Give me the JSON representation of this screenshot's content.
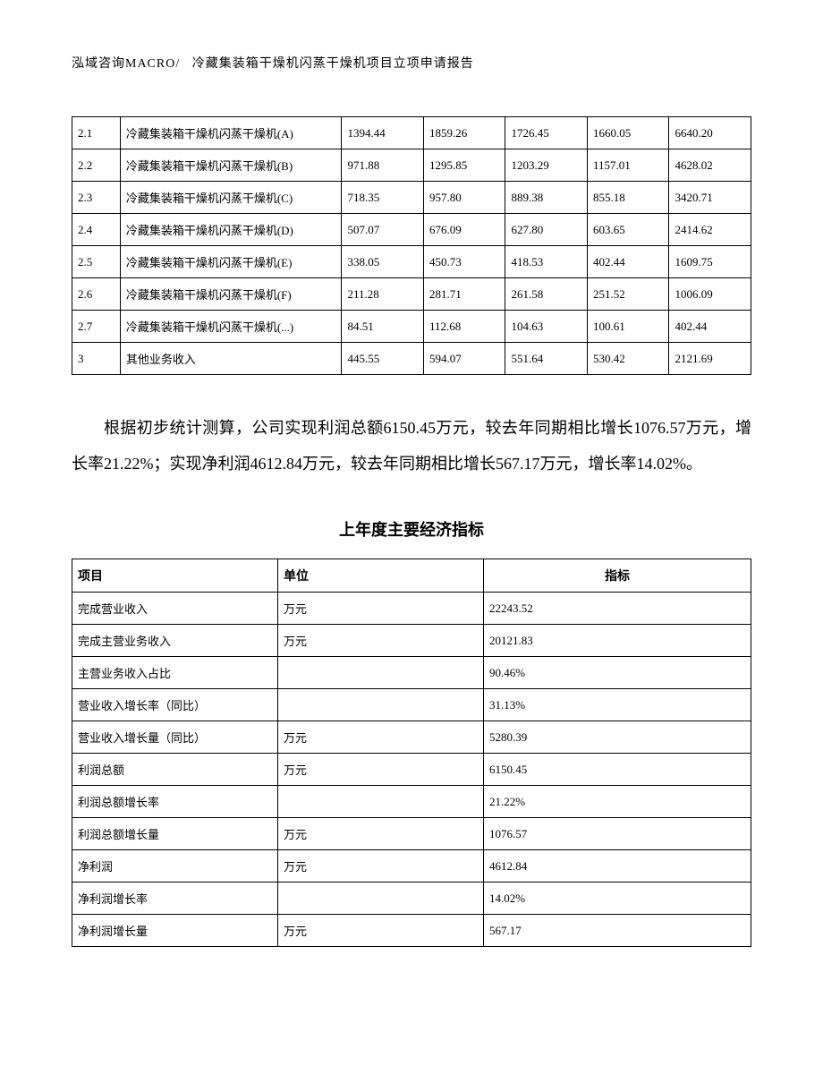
{
  "header": {
    "company": "泓域咨询MACRO/",
    "title": "冷藏集装箱干燥机闪蒸干燥机项目立项申请报告"
  },
  "table1": {
    "columns_count": 7,
    "rows": [
      {
        "idx": "2.1",
        "name": "冷藏集装箱干燥机闪蒸干燥机(A)",
        "v1": "1394.44",
        "v2": "1859.26",
        "v3": "1726.45",
        "v4": "1660.05",
        "v5": "6640.20"
      },
      {
        "idx": "2.2",
        "name": "冷藏集装箱干燥机闪蒸干燥机(B)",
        "v1": "971.88",
        "v2": "1295.85",
        "v3": "1203.29",
        "v4": "1157.01",
        "v5": "4628.02"
      },
      {
        "idx": "2.3",
        "name": "冷藏集装箱干燥机闪蒸干燥机(C)",
        "v1": "718.35",
        "v2": "957.80",
        "v3": "889.38",
        "v4": "855.18",
        "v5": "3420.71"
      },
      {
        "idx": "2.4",
        "name": "冷藏集装箱干燥机闪蒸干燥机(D)",
        "v1": "507.07",
        "v2": "676.09",
        "v3": "627.80",
        "v4": "603.65",
        "v5": "2414.62"
      },
      {
        "idx": "2.5",
        "name": "冷藏集装箱干燥机闪蒸干燥机(E)",
        "v1": "338.05",
        "v2": "450.73",
        "v3": "418.53",
        "v4": "402.44",
        "v5": "1609.75"
      },
      {
        "idx": "2.6",
        "name": "冷藏集装箱干燥机闪蒸干燥机(F)",
        "v1": "211.28",
        "v2": "281.71",
        "v3": "261.58",
        "v4": "251.52",
        "v5": "1006.09"
      },
      {
        "idx": "2.7",
        "name": "冷藏集装箱干燥机闪蒸干燥机(...)",
        "v1": "84.51",
        "v2": "112.68",
        "v3": "104.63",
        "v4": "100.61",
        "v5": "402.44"
      },
      {
        "idx": "3",
        "name": "其他业务收入",
        "v1": "445.55",
        "v2": "594.07",
        "v3": "551.64",
        "v4": "530.42",
        "v5": "2121.69"
      }
    ]
  },
  "paragraph": {
    "text": "根据初步统计测算，公司实现利润总额6150.45万元，较去年同期相比增长1076.57万元，增长率21.22%；实现净利润4612.84万元，较去年同期相比增长567.17万元，增长率14.02%。"
  },
  "table2": {
    "title": "上年度主要经济指标",
    "headers": {
      "item": "项目",
      "unit": "单位",
      "indicator": "指标"
    },
    "rows": [
      {
        "item": "完成营业收入",
        "unit": "万元",
        "indicator": "22243.52"
      },
      {
        "item": "完成主营业务收入",
        "unit": "万元",
        "indicator": "20121.83"
      },
      {
        "item": "主营业务收入占比",
        "unit": "",
        "indicator": "90.46%"
      },
      {
        "item": "营业收入增长率（同比）",
        "unit": "",
        "indicator": "31.13%"
      },
      {
        "item": "营业收入增长量（同比）",
        "unit": "万元",
        "indicator": "5280.39"
      },
      {
        "item": "利润总额",
        "unit": "万元",
        "indicator": "6150.45"
      },
      {
        "item": "利润总额增长率",
        "unit": "",
        "indicator": "21.22%"
      },
      {
        "item": "利润总额增长量",
        "unit": "万元",
        "indicator": "1076.57"
      },
      {
        "item": "净利润",
        "unit": "万元",
        "indicator": "4612.84"
      },
      {
        "item": "净利润增长率",
        "unit": "",
        "indicator": "14.02%"
      },
      {
        "item": "净利润增长量",
        "unit": "万元",
        "indicator": "567.17"
      }
    ]
  }
}
